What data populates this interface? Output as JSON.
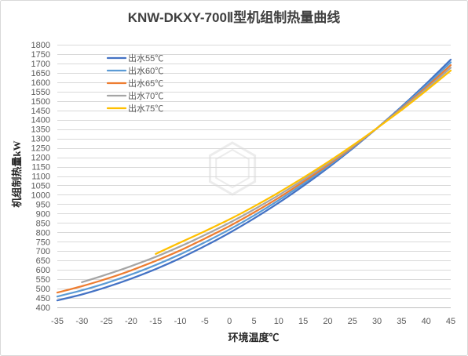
{
  "chart_data": {
    "type": "line",
    "title": "KNW-DKXY-700Ⅱ型机组制热量曲线",
    "xlabel": "环境温度℃",
    "ylabel": "机组制热量kW",
    "xlim": [
      -35,
      45
    ],
    "ylim": [
      400,
      1800
    ],
    "xticks": [
      -35,
      -30,
      -25,
      -20,
      -15,
      -10,
      -5,
      0,
      5,
      10,
      15,
      20,
      25,
      30,
      35,
      40,
      45
    ],
    "yticks": [
      400,
      450,
      500,
      550,
      600,
      650,
      700,
      750,
      800,
      850,
      900,
      950,
      1000,
      1050,
      1100,
      1150,
      1200,
      1250,
      1300,
      1350,
      1400,
      1450,
      1500,
      1550,
      1600,
      1650,
      1700,
      1750,
      1800
    ],
    "grid": {
      "horizontal": true,
      "vertical": false
    },
    "legend": "top-left",
    "series": [
      {
        "name": "出水55℃",
        "color": "#4472C4",
        "x": [
          -35,
          -30,
          -25,
          -20,
          -15,
          -10,
          -5,
          0,
          5,
          10,
          15,
          20,
          25,
          30,
          35,
          40,
          45
        ],
        "y": [
          437,
          469,
          508,
          553,
          604,
          662,
          727,
          797,
          874,
          957,
          1047,
          1143,
          1246,
          1355,
          1470,
          1592,
          1720
        ]
      },
      {
        "name": "出水60℃",
        "color": "#5B9BD5",
        "x": [
          -35,
          -30,
          -25,
          -20,
          -15,
          -10,
          -5,
          0,
          5,
          10,
          15,
          20,
          25,
          30,
          35,
          40,
          45
        ],
        "y": [
          458,
          491,
          530,
          575,
          626,
          683,
          747,
          815,
          890,
          971,
          1058,
          1151,
          1250,
          1355,
          1466,
          1583,
          1706
        ]
      },
      {
        "name": "出水65℃",
        "color": "#ED7D31",
        "x": [
          -35,
          -30,
          -25,
          -20,
          -15,
          -10,
          -5,
          0,
          5,
          10,
          15,
          20,
          25,
          30,
          35,
          40,
          45
        ],
        "y": [
          479,
          513,
          552,
          597,
          648,
          704,
          767,
          833,
          906,
          984,
          1069,
          1158,
          1254,
          1355,
          1461,
          1573,
          1691
        ]
      },
      {
        "name": "出水70℃",
        "color": "#A5A5A5",
        "x": [
          -30,
          -25,
          -20,
          -15,
          -10,
          -5,
          0,
          5,
          10,
          15,
          20,
          25,
          30,
          35,
          40,
          45
        ],
        "y": [
          534,
          575,
          620,
          669,
          725,
          786,
          851,
          922,
          998,
          1080,
          1166,
          1258,
          1355,
          1457,
          1564,
          1677
        ]
      },
      {
        "name": "出水75℃",
        "color": "#FFC000",
        "x": [
          -15,
          -10,
          -5,
          0,
          5,
          10,
          15,
          20,
          25,
          30,
          35,
          40,
          45
        ],
        "y": [
          685,
          746,
          806,
          869,
          938,
          1012,
          1091,
          1174,
          1262,
          1355,
          1452,
          1555,
          1662
        ]
      }
    ]
  },
  "colors": {
    "grid": "#D9D9D9",
    "axis": "#BFBFBF",
    "border": "#D9D9D9",
    "watermark": "#ECECEC"
  }
}
